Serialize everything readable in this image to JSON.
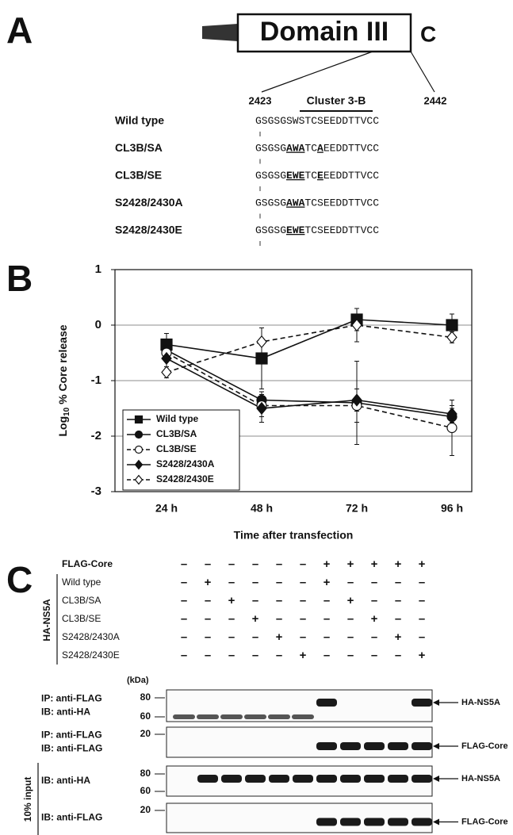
{
  "panel_a": {
    "label": "A",
    "domain": "Domain III",
    "terminus": "C",
    "start": 2423,
    "end": 2442,
    "cluster": "Cluster 3-B",
    "rows": [
      {
        "name": "Wild type",
        "segments": [
          {
            "text": "GSGSGSWSTCSEEDDTTVCC"
          }
        ]
      },
      {
        "name": "CL3B/SA",
        "segments": [
          {
            "text": "GSGSG"
          },
          {
            "text": "AWA",
            "mutated": true
          },
          {
            "text": "TC"
          },
          {
            "text": "A",
            "mutated": true
          },
          {
            "text": "EEDDTTVCC"
          }
        ]
      },
      {
        "name": "CL3B/SE",
        "segments": [
          {
            "text": "GSGSG"
          },
          {
            "text": "EWE",
            "mutated": true
          },
          {
            "text": "TC"
          },
          {
            "text": "E",
            "mutated": true
          },
          {
            "text": "EEDDTTVCC"
          }
        ]
      },
      {
        "name": "S2428/2430A",
        "segments": [
          {
            "text": "GSGSG"
          },
          {
            "text": "AWA",
            "mutated": true
          },
          {
            "text": "TCSEEDDTTVCC"
          }
        ]
      },
      {
        "name": "S2428/2430E",
        "segments": [
          {
            "text": "GSGSG"
          },
          {
            "text": "EWE",
            "mutated": true
          },
          {
            "text": "TCSEEDDTTVCC"
          }
        ]
      }
    ]
  },
  "chart_data": {
    "type": "line",
    "panel_label": "B",
    "ylabel": {
      "base": "Log",
      "subscript": "10",
      "rest": " % Core release"
    },
    "xlabel": "Time after transfection",
    "categories": [
      "24 h",
      "48 h",
      "72 h",
      "96 h"
    ],
    "ylim": [
      -3,
      1
    ],
    "yticks": [
      -3,
      -2,
      -1,
      0,
      1
    ],
    "grid": true,
    "legend": "lower-left",
    "series": [
      {
        "name": "Wild type",
        "color": "#111111",
        "marker": "square",
        "filled": true,
        "dashed": false,
        "values": [
          -0.35,
          -0.6,
          0.1,
          0.0
        ],
        "errors": [
          0.2,
          0.55,
          0.2,
          0.2
        ]
      },
      {
        "name": "CL3B/SA",
        "color": "#111111",
        "marker": "circle",
        "filled": true,
        "dashed": false,
        "values": [
          -0.45,
          -1.35,
          -1.4,
          -1.65
        ],
        "errors": [
          0.15,
          0.15,
          0.75,
          0.15
        ]
      },
      {
        "name": "CL3B/SE",
        "color": "#111111",
        "marker": "circle",
        "filled": false,
        "dashed": true,
        "values": [
          -0.5,
          -1.45,
          -1.45,
          -1.85
        ],
        "errors": [
          0.15,
          0.2,
          0.3,
          0.5
        ]
      },
      {
        "name": "S2428/2430A",
        "color": "#111111",
        "marker": "diamond",
        "filled": true,
        "dashed": false,
        "values": [
          -0.6,
          -1.5,
          -1.35,
          -1.6
        ],
        "errors": [
          0.15,
          0.25,
          0.2,
          0.15
        ]
      },
      {
        "name": "S2428/2430E",
        "color": "#111111",
        "marker": "diamond",
        "filled": false,
        "dashed": true,
        "values": [
          -0.85,
          -0.3,
          0.0,
          -0.22
        ],
        "errors": [
          0.1,
          0.25,
          0.3,
          0.1
        ]
      }
    ]
  },
  "panel_c": {
    "label": "C",
    "group": "HA-NS5A",
    "rows": [
      {
        "name": "FLAG-Core",
        "marks": [
          "–",
          "–",
          "–",
          "–",
          "–",
          "–",
          "+",
          "+",
          "+",
          "+",
          "+"
        ]
      },
      {
        "name": "Wild type",
        "marks": [
          "–",
          "+",
          "–",
          "–",
          "–",
          "–",
          "+",
          "–",
          "–",
          "–",
          "–"
        ]
      },
      {
        "name": "CL3B/SA",
        "marks": [
          "–",
          "–",
          "+",
          "–",
          "–",
          "–",
          "–",
          "+",
          "–",
          "–",
          "–"
        ]
      },
      {
        "name": "CL3B/SE",
        "marks": [
          "–",
          "–",
          "–",
          "+",
          "–",
          "–",
          "–",
          "–",
          "+",
          "–",
          "–"
        ]
      },
      {
        "name": "S2428/2430A",
        "marks": [
          "–",
          "–",
          "–",
          "–",
          "+",
          "–",
          "–",
          "–",
          "–",
          "+",
          "–"
        ]
      },
      {
        "name": "S2428/2430E",
        "marks": [
          "–",
          "–",
          "–",
          "–",
          "–",
          "+",
          "–",
          "–",
          "–",
          "–",
          "+"
        ]
      }
    ],
    "kda": "(kDa)",
    "input": "10% input",
    "blots": [
      {
        "labels": [
          "IP: anti-FLAG",
          "IB: anti-HA"
        ],
        "markers": [
          80,
          60
        ],
        "target": "HA-NS5A"
      },
      {
        "labels": [
          "IP: anti-FLAG",
          "IB: anti-FLAG"
        ],
        "markers": [
          20
        ],
        "target": "FLAG-Core"
      },
      {
        "labels": [
          "IB: anti-HA"
        ],
        "markers": [
          80,
          60
        ],
        "target": "HA-NS5A"
      },
      {
        "labels": [
          "IB: anti-FLAG"
        ],
        "markers": [
          20
        ],
        "target": "FLAG-Core"
      }
    ]
  }
}
